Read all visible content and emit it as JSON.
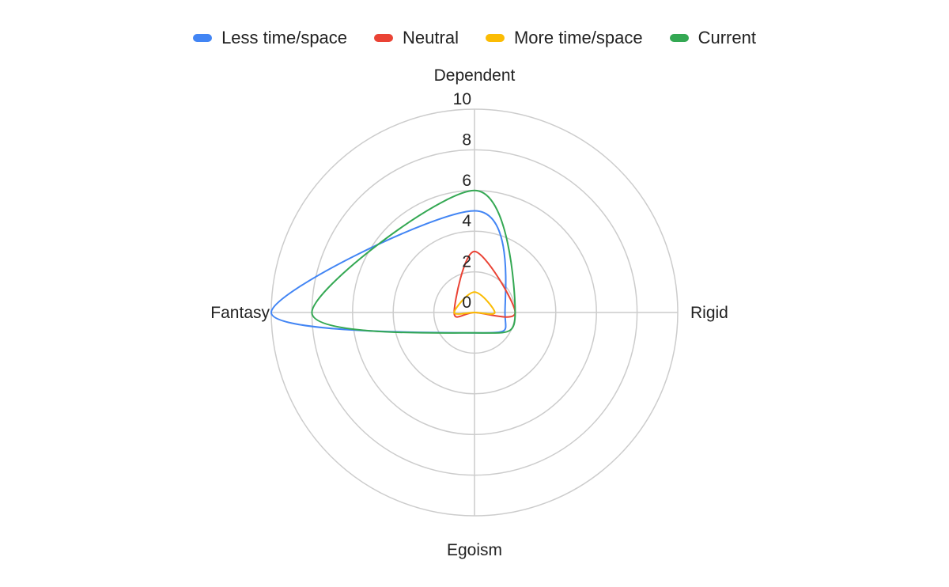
{
  "chart_data": {
    "type": "radar",
    "title": "",
    "axes": [
      "Dependent",
      "Rigid",
      "Egoism",
      "Fantasy"
    ],
    "range": [
      0,
      10
    ],
    "ticks": [
      "0",
      "2",
      "4",
      "6",
      "8",
      "10"
    ],
    "curved_lines": true,
    "legend_position": "top",
    "series": [
      {
        "name": "Less time/space",
        "color": "#4285f4",
        "values": [
          5,
          1.5,
          1,
          10
        ]
      },
      {
        "name": "Neutral",
        "color": "#ea4335",
        "values": [
          3,
          2,
          0,
          1
        ]
      },
      {
        "name": "More time/space",
        "color": "#fbbc04",
        "values": [
          1,
          1,
          0,
          1
        ]
      },
      {
        "name": "Current",
        "color": "#34a853",
        "values": [
          6,
          2,
          1,
          8
        ]
      }
    ]
  }
}
